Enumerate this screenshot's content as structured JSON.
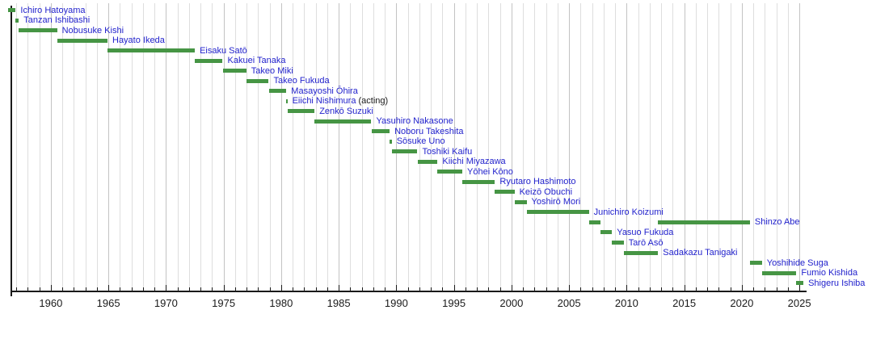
{
  "chart_data": {
    "type": "bar",
    "variant": "timeline-gantt",
    "title": "",
    "xlabel": "",
    "ylabel": "",
    "x_axis": {
      "range": [
        1956.5,
        2025.6
      ],
      "major_ticks": [
        1960,
        1965,
        1970,
        1975,
        1980,
        1985,
        1990,
        1995,
        2000,
        2005,
        2010,
        2015,
        2020,
        2025
      ],
      "major_tick_labels": [
        "1960",
        "1965",
        "1970",
        "1975",
        "1980",
        "1985",
        "1990",
        "1995",
        "2000",
        "2005",
        "2010",
        "2015",
        "2020",
        "2025"
      ],
      "minor_tick_interval_years": 1,
      "grid": true
    },
    "legend": [],
    "colors": {
      "bar_green": "#469544",
      "label_blue": "#2222cc",
      "suffix_black": "#1a1a1a",
      "axis_black": "#1a1a1a",
      "grid_minor": "#dedede",
      "grid_major": "#c3c3c3"
    },
    "people": [
      {
        "label": "Ichiro Hatoyama",
        "bars": [
          [
            1956.26,
            1956.95
          ]
        ]
      },
      {
        "label": "Tanzan Ishibashi",
        "bars": [
          [
            1956.95,
            1957.22
          ]
        ]
      },
      {
        "label": "Nobusuke Kishi",
        "bars": [
          [
            1957.22,
            1960.54
          ]
        ]
      },
      {
        "label": "Hayato Ikeda",
        "bars": [
          [
            1960.54,
            1964.92
          ]
        ]
      },
      {
        "label": "Eisaku Satō",
        "bars": [
          [
            1964.92,
            1972.51
          ]
        ]
      },
      {
        "label": "Kakuei Tanaka",
        "bars": [
          [
            1972.51,
            1974.92
          ]
        ]
      },
      {
        "label": "Takeo Miki",
        "bars": [
          [
            1974.92,
            1976.98
          ]
        ]
      },
      {
        "label": "Takeo Fukuda",
        "bars": [
          [
            1976.98,
            1978.92
          ]
        ]
      },
      {
        "label": "Masayoshi Ōhira",
        "bars": [
          [
            1978.92,
            1980.45
          ]
        ]
      },
      {
        "label": "Eiichi Nishimura",
        "suffix": " (acting)",
        "bars": [
          [
            1980.45,
            1980.54
          ]
        ]
      },
      {
        "label": "Zenkō Suzuki",
        "bars": [
          [
            1980.54,
            1982.9
          ]
        ]
      },
      {
        "label": "Yasuhiro Nakasone",
        "bars": [
          [
            1982.9,
            1987.83
          ]
        ]
      },
      {
        "label": "Noboru Takeshita",
        "bars": [
          [
            1987.83,
            1989.42
          ]
        ]
      },
      {
        "label": "Sōsuke Uno",
        "bars": [
          [
            1989.42,
            1989.6
          ]
        ]
      },
      {
        "label": "Toshiki Kaifu",
        "bars": [
          [
            1989.6,
            1991.83
          ]
        ]
      },
      {
        "label": "Kiichi Miyazawa",
        "bars": [
          [
            1991.83,
            1993.58
          ]
        ]
      },
      {
        "label": "Yōhei Kōno",
        "bars": [
          [
            1993.58,
            1995.73
          ]
        ]
      },
      {
        "label": "Ryutaro Hashimoto",
        "bars": [
          [
            1995.73,
            1998.56
          ]
        ]
      },
      {
        "label": "Keizō Obuchi",
        "bars": [
          [
            1998.56,
            2000.26
          ]
        ]
      },
      {
        "label": "Yoshirō Mori",
        "bars": [
          [
            2000.26,
            2001.31
          ]
        ]
      },
      {
        "label": "Junichiro Koizumi",
        "bars": [
          [
            2001.31,
            2006.72
          ]
        ]
      },
      {
        "label": "Shinzo Abe",
        "bars": [
          [
            2006.72,
            2007.73
          ],
          [
            2012.73,
            2020.7
          ]
        ]
      },
      {
        "label": "Yasuo Fukuda",
        "bars": [
          [
            2007.73,
            2008.73
          ]
        ]
      },
      {
        "label": "Tarō Asō",
        "bars": [
          [
            2008.73,
            2009.74
          ]
        ]
      },
      {
        "label": "Sadakazu Tanigaki",
        "bars": [
          [
            2009.74,
            2012.73
          ]
        ]
      },
      {
        "label": "Yoshihide Suga",
        "bars": [
          [
            2020.7,
            2021.75
          ]
        ]
      },
      {
        "label": "Fumio Kishida",
        "bars": [
          [
            2021.75,
            2024.74
          ]
        ]
      },
      {
        "label": "Shigeru Ishiba",
        "bars": [
          [
            2024.74,
            2025.35
          ]
        ]
      }
    ]
  }
}
